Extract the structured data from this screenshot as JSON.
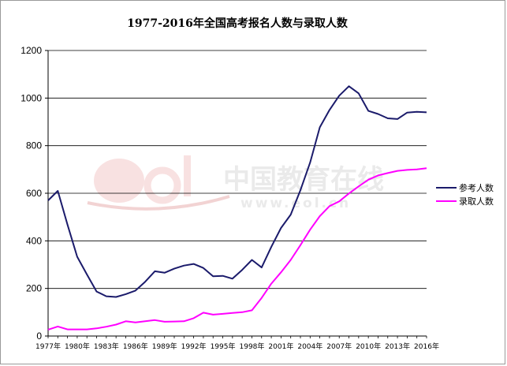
{
  "chart_data": {
    "type": "line",
    "title": "1977-2016年全国高考报名人数与录取人数",
    "xlabel": "",
    "ylabel": "",
    "ylim": [
      0,
      1200
    ],
    "yticks": [
      0,
      200,
      400,
      600,
      800,
      1000,
      1200
    ],
    "grid": true,
    "legend_position": "right",
    "x": [
      1977,
      1978,
      1979,
      1980,
      1981,
      1982,
      1983,
      1984,
      1985,
      1986,
      1987,
      1988,
      1989,
      1990,
      1991,
      1992,
      1993,
      1994,
      1995,
      1996,
      1997,
      1998,
      1999,
      2000,
      2001,
      2002,
      2003,
      2004,
      2005,
      2006,
      2007,
      2008,
      2009,
      2010,
      2011,
      2012,
      2013,
      2014,
      2015,
      2016
    ],
    "x_tick_labels": [
      "1977年",
      "1980年",
      "1983年",
      "1986年",
      "1989年",
      "1992年",
      "1995年",
      "1998年",
      "2001年",
      "2004年",
      "2007年",
      "2010年",
      "2013年",
      "2016年"
    ],
    "series": [
      {
        "name": "参考人数",
        "color": "#1b1b6b",
        "values": [
          570,
          610,
          468,
          333,
          259,
          187,
          167,
          164,
          176,
          191,
          228,
          272,
          266,
          283,
          296,
          303,
          286,
          251,
          253,
          241,
          278,
          320,
          288,
          375,
          454,
          510,
          613,
          729,
          877,
          950,
          1010,
          1050,
          1020,
          946,
          933,
          915,
          912,
          939,
          942,
          940
        ]
      },
      {
        "name": "录取人数",
        "color": "#ff00ff",
        "values": [
          27,
          40,
          28,
          28,
          28,
          32,
          39,
          48,
          62,
          57,
          62,
          67,
          60,
          61,
          62,
          75,
          98,
          90,
          93,
          97,
          100,
          108,
          160,
          220,
          268,
          320,
          382,
          447,
          504,
          546,
          566,
          599,
          629,
          657,
          675,
          685,
          694,
          698,
          700,
          705
        ]
      }
    ]
  },
  "watermark": {
    "logo_text": "eol",
    "cn_text": "中国教育在线",
    "url_text": "www.eol.cn"
  }
}
